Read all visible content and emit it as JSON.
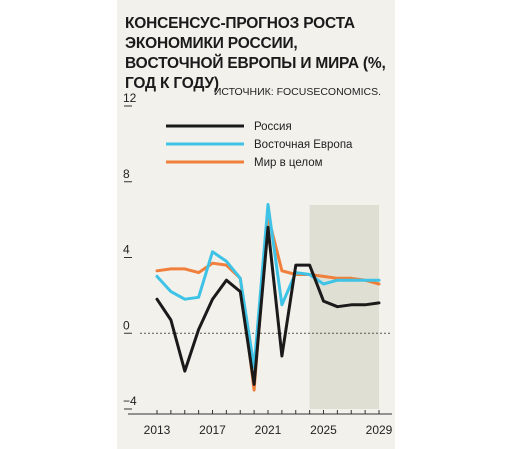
{
  "chart_data": {
    "type": "line",
    "title": "КОНСЕНСУС-ПРОГНОЗ РОСТА ЭКОНОМИКИ РОССИИ, ВОСТОЧНОЙ ЕВРОПЫ И МИРА (%, ГОД К ГОДУ)",
    "source": "ИСТОЧНИК: FOCUSECONOMICS.",
    "x": [
      2013,
      2014,
      2015,
      2016,
      2017,
      2018,
      2019,
      2020,
      2021,
      2022,
      2023,
      2024,
      2025,
      2026,
      2027,
      2028,
      2029
    ],
    "xticks": [
      "2013",
      "2017",
      "2021",
      "2025",
      "2029"
    ],
    "yticks": [
      "12",
      "8",
      "4",
      "0",
      "−4"
    ],
    "ylim": [
      -4,
      12
    ],
    "forecast_from": 2024,
    "forecast_to": 2029,
    "grid": false,
    "legend": "top",
    "series": [
      {
        "name": "Россия",
        "color": "#1a1a1a",
        "values": [
          1.8,
          0.7,
          -2.0,
          0.2,
          1.8,
          2.8,
          2.2,
          -2.7,
          5.6,
          -1.2,
          3.6,
          3.6,
          1.7,
          1.4,
          1.5,
          1.5,
          1.6
        ]
      },
      {
        "name": "Восточная Европа",
        "color": "#3ec3e6",
        "values": [
          3.0,
          2.2,
          1.8,
          1.9,
          4.3,
          3.8,
          2.9,
          -1.8,
          6.8,
          1.5,
          3.2,
          3.1,
          2.6,
          2.8,
          2.8,
          2.8,
          2.8
        ]
      },
      {
        "name": "Мир в целом",
        "color": "#f07f3c",
        "values": [
          3.3,
          3.4,
          3.4,
          3.2,
          3.7,
          3.6,
          2.9,
          -3.0,
          6.2,
          3.3,
          3.1,
          3.1,
          3.0,
          2.9,
          2.9,
          2.8,
          2.6
        ]
      }
    ]
  }
}
